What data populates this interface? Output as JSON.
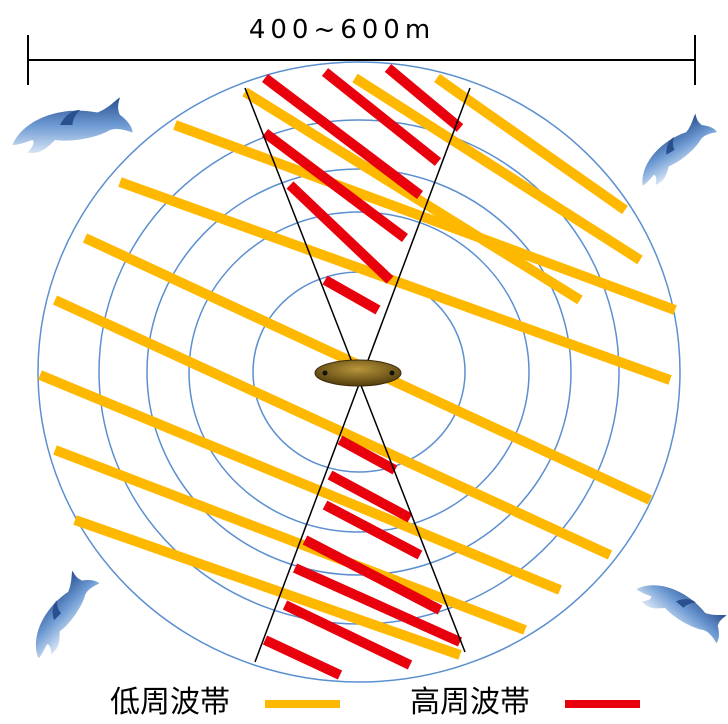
{
  "dimension_label": "400~600m",
  "legend": [
    {
      "label": "低周波帯",
      "color": "#ffb800"
    },
    {
      "label": "高周波帯",
      "color": "#e8000c"
    }
  ]
}
